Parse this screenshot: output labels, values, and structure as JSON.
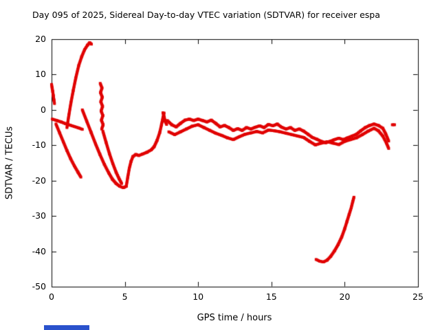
{
  "chart_data": {
    "type": "scatter",
    "title": "Day 095 of 2025, Sidereal Day-to-day VTEC variation (SDTVAR) for receiver espa",
    "xlabel": "GPS time / hours",
    "ylabel": "SDTVAR / TECUs",
    "xlim": [
      0,
      25
    ],
    "ylim": [
      -50,
      20
    ],
    "xticks": [
      0,
      5,
      10,
      15,
      20,
      25
    ],
    "yticks": [
      -50,
      -40,
      -30,
      -20,
      -10,
      0,
      10,
      20
    ],
    "grid": false,
    "legend": "none",
    "marker_color": "#e00000",
    "border_color": "#000000",
    "series": [
      {
        "name": "arc-left-blob",
        "points": [
          [
            0.0,
            7.2
          ],
          [
            0.04,
            6.2
          ],
          [
            0.08,
            5.2
          ],
          [
            0.12,
            4.0
          ],
          [
            0.16,
            2.8
          ],
          [
            0.2,
            1.8
          ]
        ]
      },
      {
        "name": "arc-diag-down-left",
        "points": [
          [
            0.3,
            -4.0
          ],
          [
            0.55,
            -6.5
          ],
          [
            0.8,
            -9.0
          ],
          [
            1.05,
            -11.5
          ],
          [
            1.3,
            -13.8
          ],
          [
            1.55,
            -15.8
          ],
          [
            1.8,
            -17.6
          ],
          [
            2.0,
            -19.0
          ]
        ]
      },
      {
        "name": "arc-spike-up",
        "points": [
          [
            1.05,
            -5.0
          ],
          [
            1.18,
            -1.5
          ],
          [
            1.32,
            2.0
          ],
          [
            1.48,
            5.5
          ],
          [
            1.65,
            9.0
          ],
          [
            1.85,
            12.5
          ],
          [
            2.05,
            15.0
          ],
          [
            2.25,
            17.0
          ],
          [
            2.45,
            18.3
          ],
          [
            2.6,
            19.0
          ],
          [
            2.72,
            18.6
          ]
        ]
      },
      {
        "name": "arc-flat-band-left",
        "points": [
          [
            0.05,
            -2.6
          ],
          [
            0.35,
            -3.0
          ],
          [
            0.65,
            -3.4
          ],
          [
            0.95,
            -3.9
          ],
          [
            1.25,
            -4.3
          ],
          [
            1.55,
            -4.7
          ],
          [
            1.85,
            -5.1
          ],
          [
            2.1,
            -5.5
          ]
        ]
      },
      {
        "name": "arc-comb",
        "points": [
          [
            3.32,
            7.5
          ],
          [
            3.44,
            6.2
          ],
          [
            3.34,
            4.9
          ],
          [
            3.46,
            3.6
          ],
          [
            3.36,
            2.3
          ],
          [
            3.48,
            1.0
          ],
          [
            3.38,
            -0.3
          ],
          [
            3.5,
            -1.6
          ],
          [
            3.4,
            -2.9
          ],
          [
            3.52,
            -4.2
          ],
          [
            3.42,
            -5.4
          ]
        ]
      },
      {
        "name": "arc-v-down-main",
        "points": [
          [
            2.1,
            0.0
          ],
          [
            2.4,
            -3.2
          ],
          [
            2.7,
            -6.4
          ],
          [
            3.0,
            -9.6
          ],
          [
            3.3,
            -12.6
          ],
          [
            3.6,
            -15.4
          ],
          [
            3.9,
            -17.8
          ],
          [
            4.15,
            -19.6
          ],
          [
            4.4,
            -20.8
          ],
          [
            4.65,
            -21.6
          ],
          [
            4.9,
            -22.0
          ],
          [
            5.1,
            -21.6
          ]
        ]
      },
      {
        "name": "arc-v-down-second",
        "points": [
          [
            3.5,
            -6.0
          ],
          [
            3.72,
            -9.2
          ],
          [
            3.95,
            -12.4
          ],
          [
            4.18,
            -15.2
          ],
          [
            4.4,
            -17.6
          ],
          [
            4.6,
            -19.4
          ],
          [
            4.78,
            -20.8
          ]
        ]
      },
      {
        "name": "arc-rise-after-v",
        "points": [
          [
            5.1,
            -21.5
          ],
          [
            5.2,
            -19.0
          ],
          [
            5.3,
            -16.6
          ],
          [
            5.42,
            -14.6
          ],
          [
            5.55,
            -13.2
          ],
          [
            5.75,
            -12.6
          ],
          [
            5.95,
            -12.9
          ],
          [
            6.2,
            -12.5
          ],
          [
            6.5,
            -12.0
          ],
          [
            6.8,
            -11.3
          ],
          [
            7.0,
            -10.4
          ],
          [
            7.2,
            -8.6
          ],
          [
            7.38,
            -6.4
          ],
          [
            7.5,
            -4.2
          ],
          [
            7.6,
            -2.2
          ],
          [
            7.68,
            -0.9
          ]
        ]
      },
      {
        "name": "arc-peak-cluster",
        "points": [
          [
            7.6,
            -0.8
          ],
          [
            7.68,
            -2.0
          ],
          [
            7.75,
            -3.2
          ],
          [
            7.85,
            -4.1
          ]
        ]
      },
      {
        "name": "arc-band-upper",
        "points": [
          [
            7.9,
            -3.0
          ],
          [
            8.2,
            -4.2
          ],
          [
            8.5,
            -4.8
          ],
          [
            8.8,
            -3.8
          ],
          [
            9.1,
            -2.9
          ],
          [
            9.4,
            -2.6
          ],
          [
            9.7,
            -3.0
          ],
          [
            10.0,
            -2.6
          ],
          [
            10.3,
            -3.0
          ],
          [
            10.6,
            -3.4
          ],
          [
            10.9,
            -2.9
          ],
          [
            11.2,
            -3.8
          ],
          [
            11.5,
            -4.8
          ],
          [
            11.8,
            -4.4
          ],
          [
            12.1,
            -5.0
          ],
          [
            12.4,
            -5.8
          ],
          [
            12.7,
            -5.3
          ],
          [
            13.0,
            -5.8
          ],
          [
            13.3,
            -5.0
          ],
          [
            13.6,
            -5.4
          ],
          [
            13.9,
            -4.9
          ],
          [
            14.2,
            -4.5
          ],
          [
            14.5,
            -5.0
          ],
          [
            14.8,
            -4.1
          ],
          [
            15.1,
            -4.5
          ],
          [
            15.4,
            -4.0
          ],
          [
            15.7,
            -4.9
          ],
          [
            16.0,
            -5.4
          ],
          [
            16.3,
            -5.0
          ],
          [
            16.6,
            -5.8
          ],
          [
            16.9,
            -5.4
          ],
          [
            17.2,
            -6.0
          ],
          [
            17.5,
            -6.9
          ],
          [
            17.8,
            -7.8
          ],
          [
            18.1,
            -8.3
          ],
          [
            18.4,
            -8.9
          ],
          [
            18.7,
            -9.3
          ],
          [
            19.0,
            -8.9
          ],
          [
            19.3,
            -8.4
          ],
          [
            19.6,
            -8.0
          ],
          [
            19.9,
            -8.4
          ],
          [
            20.2,
            -7.9
          ],
          [
            20.5,
            -7.4
          ],
          [
            20.8,
            -6.9
          ],
          [
            21.1,
            -5.9
          ],
          [
            21.4,
            -5.0
          ],
          [
            21.7,
            -4.4
          ],
          [
            22.0,
            -4.0
          ],
          [
            22.3,
            -4.4
          ],
          [
            22.6,
            -5.2
          ],
          [
            22.8,
            -6.8
          ],
          [
            23.0,
            -8.8
          ]
        ]
      },
      {
        "name": "arc-band-lower",
        "points": [
          [
            8.0,
            -6.2
          ],
          [
            8.4,
            -7.0
          ],
          [
            8.8,
            -6.2
          ],
          [
            9.2,
            -5.4
          ],
          [
            9.6,
            -4.6
          ],
          [
            10.0,
            -4.2
          ],
          [
            10.4,
            -5.0
          ],
          [
            10.8,
            -5.8
          ],
          [
            11.2,
            -6.6
          ],
          [
            11.6,
            -7.2
          ],
          [
            12.0,
            -7.9
          ],
          [
            12.4,
            -8.4
          ],
          [
            12.8,
            -7.6
          ],
          [
            13.2,
            -6.9
          ],
          [
            13.6,
            -6.5
          ],
          [
            14.0,
            -6.1
          ],
          [
            14.4,
            -6.5
          ],
          [
            14.8,
            -5.7
          ],
          [
            15.2,
            -5.9
          ],
          [
            15.6,
            -6.2
          ],
          [
            16.0,
            -6.6
          ],
          [
            16.4,
            -7.0
          ],
          [
            16.8,
            -7.4
          ],
          [
            17.2,
            -7.8
          ],
          [
            17.6,
            -8.9
          ],
          [
            18.0,
            -9.9
          ],
          [
            18.4,
            -9.4
          ],
          [
            18.8,
            -9.0
          ],
          [
            19.2,
            -9.4
          ],
          [
            19.6,
            -9.8
          ],
          [
            20.0,
            -8.9
          ],
          [
            20.4,
            -8.4
          ],
          [
            20.8,
            -7.9
          ],
          [
            21.2,
            -7.0
          ],
          [
            21.6,
            -6.0
          ],
          [
            22.0,
            -5.2
          ],
          [
            22.3,
            -5.9
          ],
          [
            22.6,
            -7.4
          ],
          [
            22.85,
            -9.4
          ],
          [
            23.0,
            -10.9
          ]
        ]
      },
      {
        "name": "arc-right-dot",
        "points": [
          [
            23.25,
            -4.2
          ],
          [
            23.4,
            -4.2
          ]
        ]
      },
      {
        "name": "arc-bottom-right",
        "points": [
          [
            18.05,
            -42.3
          ],
          [
            18.3,
            -42.8
          ],
          [
            18.55,
            -43.0
          ],
          [
            18.8,
            -42.5
          ],
          [
            19.05,
            -41.4
          ],
          [
            19.3,
            -39.9
          ],
          [
            19.55,
            -38.1
          ],
          [
            19.8,
            -35.9
          ],
          [
            20.0,
            -33.6
          ],
          [
            20.15,
            -31.6
          ],
          [
            20.3,
            -29.6
          ],
          [
            20.45,
            -27.6
          ],
          [
            20.55,
            -25.9
          ],
          [
            20.63,
            -24.7
          ]
        ]
      }
    ]
  },
  "ui": {
    "background_color": "#ffffff",
    "taskbar_fragment_color": "#2a52cc"
  }
}
